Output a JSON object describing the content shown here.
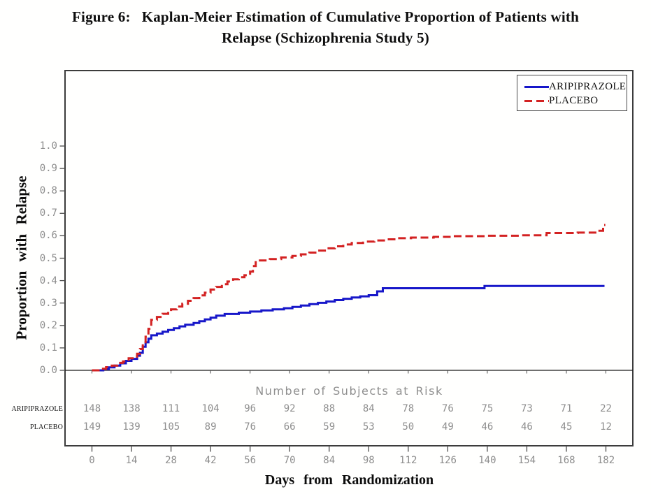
{
  "figure": {
    "title_prefix": "Figure 6:",
    "title_line1": "Kaplan-Meier Estimation of Cumulative Proportion of Patients with",
    "title_line2": "Relapse (Schizophrenia Study 5)"
  },
  "chart_data": {
    "type": "line",
    "variant": "kaplan_meier_step",
    "title": "Figure 6: Kaplan-Meier Estimation of Cumulative Proportion of Patients with Relapse (Schizophrenia Study 5)",
    "xlabel": "Days from Randomization",
    "ylabel": "Proportion with Relapse",
    "xlim": [
      0,
      182
    ],
    "ylim": [
      0.0,
      1.05
    ],
    "grid": false,
    "legend_position": "top-right",
    "x_ticks": [
      0,
      14,
      28,
      42,
      56,
      70,
      84,
      98,
      112,
      126,
      140,
      154,
      168,
      182
    ],
    "y_ticks": [
      "0.0",
      "0.1",
      "0.2",
      "0.3",
      "0.4",
      "0.5",
      "0.6",
      "0.7",
      "0.8",
      "0.9",
      "1.0"
    ],
    "colors": {
      "aripiprazole": "#1717c9",
      "placebo": "#d32222",
      "axis_text": "#8d8d8d",
      "axis_line": "#3c3c3c"
    },
    "series": [
      {
        "name": "ARIPIPRAZOLE",
        "color": "#1717c9",
        "style": "solid",
        "points": [
          [
            0,
            0
          ],
          [
            4,
            0.005
          ],
          [
            6,
            0.013
          ],
          [
            8,
            0.021
          ],
          [
            10,
            0.031
          ],
          [
            12,
            0.042
          ],
          [
            14,
            0.051
          ],
          [
            16,
            0.065
          ],
          [
            17,
            0.078
          ],
          [
            18,
            0.105
          ],
          [
            19,
            0.125
          ],
          [
            20,
            0.141
          ],
          [
            21,
            0.156
          ],
          [
            23,
            0.164
          ],
          [
            25,
            0.172
          ],
          [
            27,
            0.18
          ],
          [
            29,
            0.188
          ],
          [
            31,
            0.196
          ],
          [
            33,
            0.203
          ],
          [
            36,
            0.211
          ],
          [
            38,
            0.219
          ],
          [
            40,
            0.227
          ],
          [
            42,
            0.235
          ],
          [
            44,
            0.244
          ],
          [
            47,
            0.251
          ],
          [
            52,
            0.257
          ],
          [
            56,
            0.262
          ],
          [
            60,
            0.267
          ],
          [
            64,
            0.272
          ],
          [
            68,
            0.277
          ],
          [
            71,
            0.283
          ],
          [
            74,
            0.289
          ],
          [
            77,
            0.295
          ],
          [
            80,
            0.301
          ],
          [
            83,
            0.307
          ],
          [
            86,
            0.313
          ],
          [
            89,
            0.319
          ],
          [
            92,
            0.325
          ],
          [
            95,
            0.33
          ],
          [
            98,
            0.335
          ],
          [
            101,
            0.352
          ],
          [
            103,
            0.366
          ],
          [
            139,
            0.376
          ],
          [
            181.5,
            0.376
          ]
        ]
      },
      {
        "name": "PLACEBO",
        "color": "#d32222",
        "style": "dashed",
        "points": [
          [
            0,
            0
          ],
          [
            3,
            0.007
          ],
          [
            5,
            0.014
          ],
          [
            7,
            0.021
          ],
          [
            9,
            0.033
          ],
          [
            11,
            0.04
          ],
          [
            13,
            0.054
          ],
          [
            15,
            0.061
          ],
          [
            16,
            0.074
          ],
          [
            17,
            0.095
          ],
          [
            18,
            0.12
          ],
          [
            19,
            0.15
          ],
          [
            20,
            0.185
          ],
          [
            21,
            0.225
          ],
          [
            23,
            0.238
          ],
          [
            25,
            0.252
          ],
          [
            27,
            0.263
          ],
          [
            28,
            0.272
          ],
          [
            30,
            0.284
          ],
          [
            32,
            0.297
          ],
          [
            34,
            0.31
          ],
          [
            36,
            0.322
          ],
          [
            38,
            0.334
          ],
          [
            40,
            0.346
          ],
          [
            42,
            0.36
          ],
          [
            44,
            0.372
          ],
          [
            46,
            0.384
          ],
          [
            48,
            0.396
          ],
          [
            50,
            0.406
          ],
          [
            52,
            0.415
          ],
          [
            54,
            0.424
          ],
          [
            56,
            0.44
          ],
          [
            57,
            0.465
          ],
          [
            58,
            0.49
          ],
          [
            63,
            0.496
          ],
          [
            67,
            0.503
          ],
          [
            71,
            0.51
          ],
          [
            74,
            0.517
          ],
          [
            77,
            0.525
          ],
          [
            80,
            0.534
          ],
          [
            83,
            0.544
          ],
          [
            86,
            0.553
          ],
          [
            89,
            0.561
          ],
          [
            92,
            0.568
          ],
          [
            96,
            0.574
          ],
          [
            100,
            0.579
          ],
          [
            104,
            0.584
          ],
          [
            108,
            0.589
          ],
          [
            113,
            0.592
          ],
          [
            121,
            0.595
          ],
          [
            128,
            0.598
          ],
          [
            140,
            0.6
          ],
          [
            152,
            0.602
          ],
          [
            161,
            0.612
          ],
          [
            172,
            0.614
          ],
          [
            179,
            0.622
          ],
          [
            181,
            0.648
          ],
          [
            181.8,
            0.648
          ]
        ]
      }
    ],
    "at_risk_table": {
      "header": "Number of Subjects at Risk",
      "rows": [
        {
          "label": "ARIPIPRAZOLE",
          "counts": [
            148,
            138,
            111,
            104,
            96,
            92,
            88,
            84,
            78,
            76,
            75,
            73,
            71,
            22
          ]
        },
        {
          "label": "PLACEBO",
          "counts": [
            149,
            139,
            105,
            89,
            76,
            66,
            59,
            53,
            50,
            49,
            46,
            46,
            45,
            12
          ]
        }
      ]
    }
  }
}
